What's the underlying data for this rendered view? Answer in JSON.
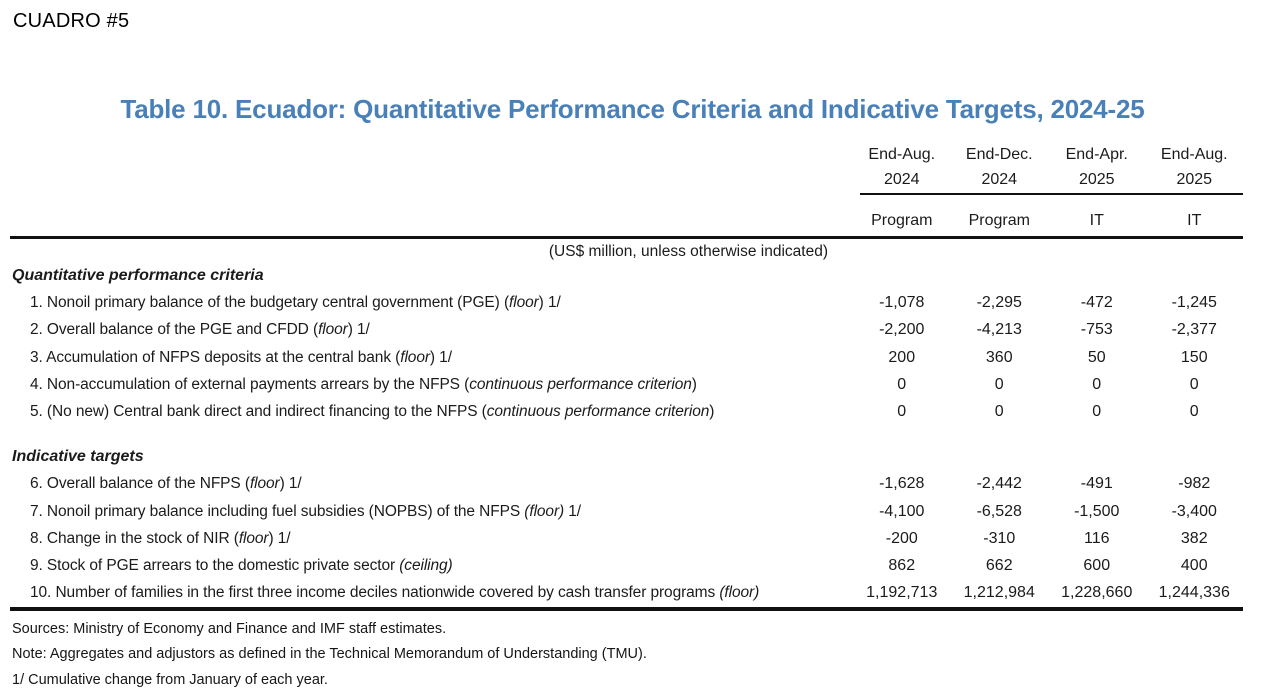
{
  "page": {
    "corner_label": "CUADRO #5",
    "title_color": "#4a80b8"
  },
  "table": {
    "title": "Table 10. Ecuador: Quantitative Performance Criteria and Indicative Targets, 2024-25",
    "unit_note": "(US$ million, unless otherwise indicated)",
    "columns": [
      {
        "period": "End-Aug.",
        "year": "2024",
        "type": "Program"
      },
      {
        "period": "End-Dec.",
        "year": "2024",
        "type": "Program"
      },
      {
        "period": "End-Apr.",
        "year": "2025",
        "type": "IT"
      },
      {
        "period": "End-Aug.",
        "year": "2025",
        "type": "IT"
      }
    ],
    "sections": [
      {
        "header": "Quantitative performance criteria",
        "rows": [
          {
            "label": [
              {
                "t": "1. Nonoil primary balance of the budgetary central government (PGE) ("
              },
              {
                "t": "floor",
                "i": true
              },
              {
                "t": ") 1/"
              }
            ],
            "values": [
              "-1,078",
              "-2,295",
              "-472",
              "-1,245"
            ]
          },
          {
            "label": [
              {
                "t": "2. Overall balance of the PGE and CFDD ("
              },
              {
                "t": "floor",
                "i": true
              },
              {
                "t": ") 1/"
              }
            ],
            "values": [
              "-2,200",
              "-4,213",
              "-753",
              "-2,377"
            ]
          },
          {
            "label": [
              {
                "t": "3. Accumulation of NFPS deposits at the central bank ("
              },
              {
                "t": "floor",
                "i": true
              },
              {
                "t": ") 1/"
              }
            ],
            "values": [
              "200",
              "360",
              "50",
              "150"
            ]
          },
          {
            "label": [
              {
                "t": "4. Non-accumulation of external payments arrears by the NFPS ("
              },
              {
                "t": "continuous performance criterion",
                "i": true
              },
              {
                "t": ")"
              }
            ],
            "values": [
              "0",
              "0",
              "0",
              "0"
            ]
          },
          {
            "label": [
              {
                "t": "5. (No new) Central bank direct and indirect financing to the NFPS ("
              },
              {
                "t": "continuous performance criterion",
                "i": true
              },
              {
                "t": ")"
              }
            ],
            "values": [
              "0",
              "0",
              "0",
              "0"
            ]
          }
        ]
      },
      {
        "header": "Indicative targets",
        "rows": [
          {
            "label": [
              {
                "t": "6. Overall balance of the NFPS ("
              },
              {
                "t": "floor",
                "i": true
              },
              {
                "t": ") 1/"
              }
            ],
            "values": [
              "-1,628",
              "-2,442",
              "-491",
              "-982"
            ]
          },
          {
            "label": [
              {
                "t": "7. Nonoil primary balance including fuel subsidies (NOPBS) of the NFPS "
              },
              {
                "t": "(floor)",
                "i": true
              },
              {
                "t": " 1/"
              }
            ],
            "values": [
              "-4,100",
              "-6,528",
              "-1,500",
              "-3,400"
            ]
          },
          {
            "label": [
              {
                "t": "8. Change in the stock of NIR ("
              },
              {
                "t": "floor",
                "i": true
              },
              {
                "t": ") 1/"
              }
            ],
            "values": [
              "-200",
              "-310",
              "116",
              "382"
            ]
          },
          {
            "label": [
              {
                "t": "9. Stock of PGE arrears to the domestic private sector "
              },
              {
                "t": "(ceiling)",
                "i": true
              }
            ],
            "values": [
              "862",
              "662",
              "600",
              "400"
            ]
          },
          {
            "label": [
              {
                "t": "10. Number of families in the first three income deciles nationwide covered by cash transfer programs "
              },
              {
                "t": "(floor)",
                "i": true
              }
            ],
            "values": [
              "1,192,713",
              "1,212,984",
              "1,228,660",
              "1,244,336"
            ]
          }
        ]
      }
    ],
    "footnotes": [
      "Sources: Ministry of Economy and Finance and IMF staff estimates.",
      "Note: Aggregates and adjustors as defined in the Technical Memorandum of Understanding (TMU).",
      "1/ Cumulative change from January of each year."
    ]
  }
}
